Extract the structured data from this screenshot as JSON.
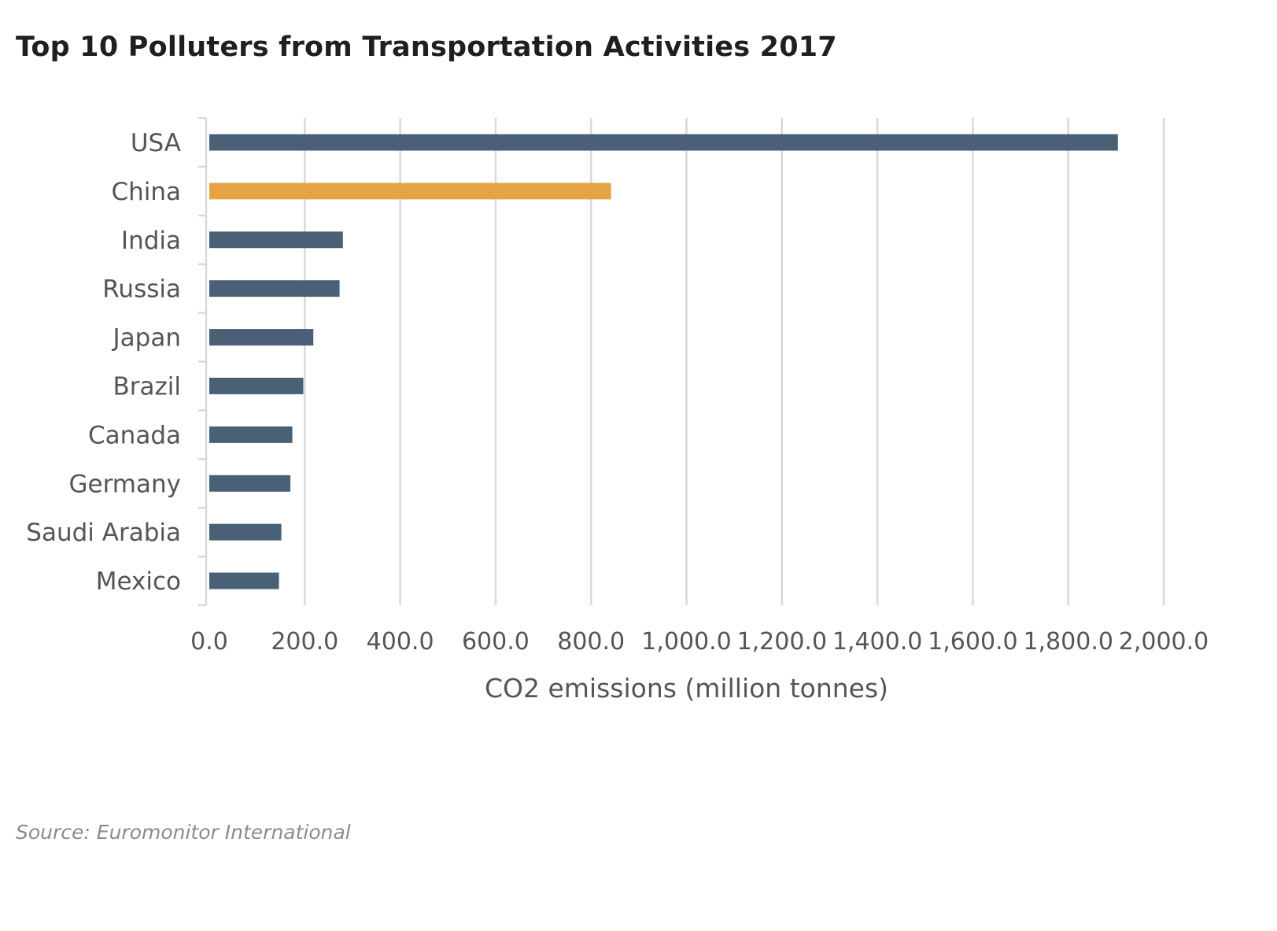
{
  "chart_data": {
    "type": "bar",
    "orientation": "horizontal",
    "title": "Top 10 Polluters from Transportation Activities 2017",
    "xlabel": "CO2 emissions (million tonnes)",
    "ylabel": "",
    "categories": [
      "USA",
      "China",
      "India",
      "Russia",
      "Japan",
      "Brazil",
      "Canada",
      "Germany",
      "Saudi Arabia",
      "Mexico"
    ],
    "values": [
      1904,
      842,
      280,
      273,
      218,
      197,
      174,
      170,
      151,
      146
    ],
    "xlim": [
      0,
      2000
    ],
    "xticks": [
      0,
      200,
      400,
      600,
      800,
      1000,
      1200,
      1400,
      1600,
      1800,
      2000
    ],
    "xtick_labels": [
      "0.0",
      "200.0",
      "400.0",
      "600.0",
      "800.0",
      "1,000.0",
      "1,200.0",
      "1,400.0",
      "1,600.0",
      "1,800.0",
      "2,000.0"
    ],
    "grid": "vertical",
    "legend": "none",
    "colors": {
      "default_bar": "#4a6076",
      "highlight_bar": "#e5a444",
      "grid": "#d9d9d9",
      "text": "#555555",
      "title": "#1f1f1f"
    },
    "highlight_category": "China",
    "source": "Source: Euromonitor International"
  }
}
